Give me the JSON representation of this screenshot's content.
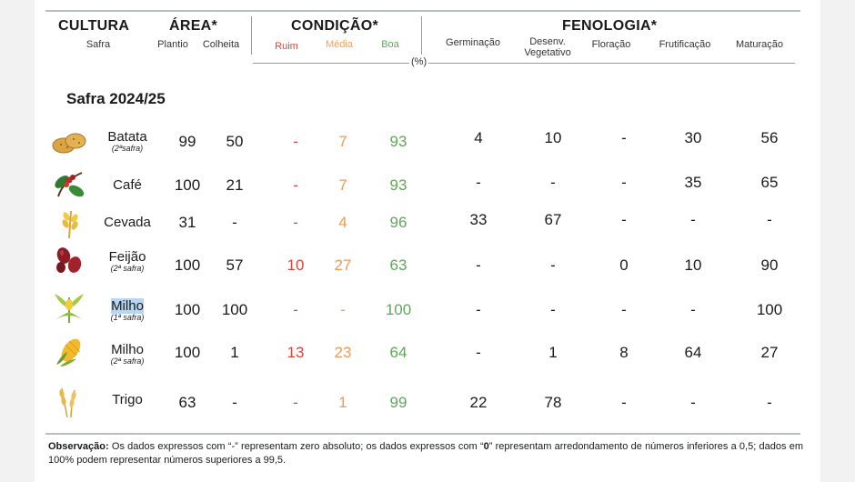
{
  "header": {
    "cultura": "CULTURA",
    "safra_sub": "Safra",
    "area": "ÁREA*",
    "plantio": "Plantio",
    "colheita": "Colheita",
    "condicao": "CONDIÇÃO*",
    "ruim": "Ruim",
    "media": "Média",
    "boa": "Boa",
    "fenologia": "FENOLOGIA*",
    "germinacao": "Germinação",
    "desenv_l1": "Desenv.",
    "desenv_l2": "Vegetativo",
    "floracao": "Floração",
    "frutificacao": "Frutificação",
    "maturacao": "Maturação",
    "unit": "(%)"
  },
  "safra_title": "Safra 2024/25",
  "rows": [
    {
      "crop": "Batata",
      "note": "(2ªsafra)",
      "plantio": "99",
      "colheita": "50",
      "ruim": "-",
      "media": "7",
      "boa": "93",
      "germ": "4",
      "desenv": "10",
      "flor": "-",
      "frut": "30",
      "mat": "56"
    },
    {
      "crop": "Café",
      "note": "",
      "plantio": "100",
      "colheita": "21",
      "ruim": "-",
      "media": "7",
      "boa": "93",
      "germ": "-",
      "desenv": "-",
      "flor": "-",
      "frut": "35",
      "mat": "65"
    },
    {
      "crop": "Cevada",
      "note": "",
      "plantio": "31",
      "colheita": "-",
      "ruim": "-",
      "media": "4",
      "boa": "96",
      "germ": "33",
      "desenv": "67",
      "flor": "-",
      "frut": "-",
      "mat": "-"
    },
    {
      "crop": "Feijão",
      "note": "(2ª safra)",
      "plantio": "100",
      "colheita": "57",
      "ruim": "10",
      "media": "27",
      "boa": "63",
      "germ": "-",
      "desenv": "-",
      "flor": "0",
      "frut": "10",
      "mat": "90"
    },
    {
      "crop": "Milho",
      "note": "(1ª safra)",
      "plantio": "100",
      "colheita": "100",
      "ruim": "-",
      "media": "-",
      "boa": "100",
      "germ": "-",
      "desenv": "-",
      "flor": "-",
      "frut": "-",
      "mat": "100"
    },
    {
      "crop": "Milho",
      "note": "(2ª safra)",
      "plantio": "100",
      "colheita": "1",
      "ruim": "13",
      "media": "23",
      "boa": "64",
      "germ": "-",
      "desenv": "1",
      "flor": "8",
      "frut": "64",
      "mat": "27"
    },
    {
      "crop": "Trigo",
      "note": "",
      "plantio": "63",
      "colheita": "-",
      "ruim": "-",
      "media": "1",
      "boa": "99",
      "germ": "22",
      "desenv": "78",
      "flor": "-",
      "frut": "-",
      "mat": "-"
    }
  ],
  "observacao": {
    "label": "Observação:",
    "text_a": " Os dados expressos com “-” representam zero absoluto; os dados expressos com “",
    "zero": "0",
    "text_b": "” representam arredondamento de números inferiores a 0,5; dados em 100% podem representar números superiores a 99,5."
  },
  "icons": {
    "batata": "potato-icon",
    "cafe": "coffee-branch-icon",
    "cevada": "barley-icon",
    "feijao": "bean-icon",
    "milho1": "corn-plant-icon",
    "milho2": "corn-cob-icon",
    "trigo": "wheat-icon"
  }
}
